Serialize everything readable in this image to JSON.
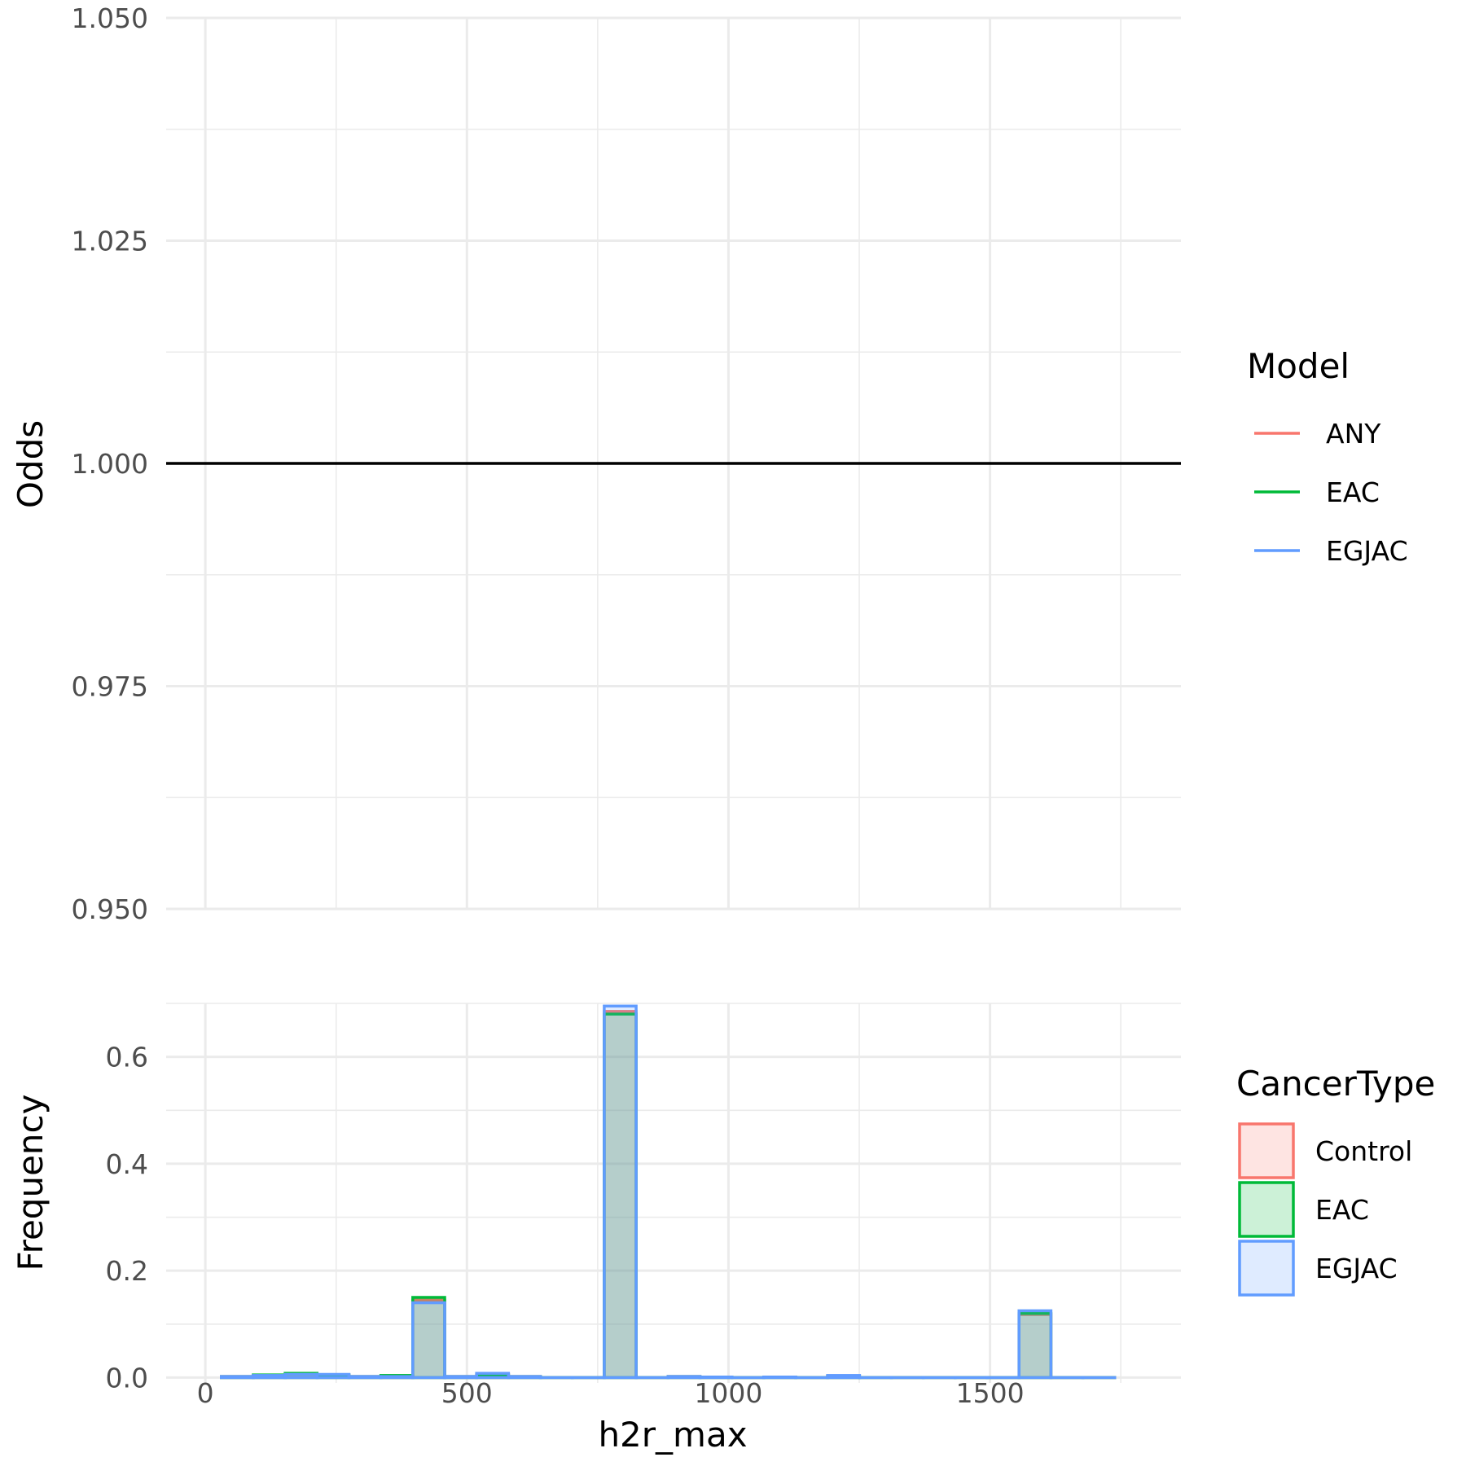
{
  "chart_data": [
    {
      "type": "line",
      "panel": "top",
      "xlabel": "",
      "ylabel": "Odds",
      "xlim": [
        -75,
        1865
      ],
      "ylim": [
        0.95,
        1.05
      ],
      "x_ticks": [
        0,
        500,
        1000,
        1500
      ],
      "y_ticks": [
        "0.950",
        "0.975",
        "1.000",
        "1.025",
        "1.050"
      ],
      "y_tick_values": [
        0.95,
        0.975,
        1.0,
        1.025,
        1.05
      ],
      "reference_line": {
        "y": 1.0,
        "color": "#000000"
      },
      "grid": true,
      "legend": {
        "title": "Model",
        "position": "right",
        "entries": [
          {
            "label": "ANY",
            "color": "#F8766D"
          },
          {
            "label": "EAC",
            "color": "#00BA38"
          },
          {
            "label": "EGJAC",
            "color": "#619CFF"
          }
        ]
      },
      "series": [
        {
          "name": "ANY",
          "color": "#F8766D",
          "x": [
            405,
            1600
          ],
          "y": [
            1.0,
            1.0
          ]
        },
        {
          "name": "EAC",
          "color": "#00BA38",
          "x": [
            405,
            1600
          ],
          "y": [
            1.0,
            1.0
          ]
        },
        {
          "name": "EGJAC",
          "color": "#619CFF",
          "x": [
            405,
            1600
          ],
          "y": [
            1.0,
            1.0
          ]
        }
      ]
    },
    {
      "type": "bar",
      "panel": "bottom",
      "xlabel": "h2r_max",
      "ylabel": "Frequency",
      "xlim": [
        -75,
        1865
      ],
      "ylim": [
        -0.01,
        0.7
      ],
      "x_ticks": [
        0,
        500,
        1000,
        1500
      ],
      "x_tick_labels": [
        "0",
        "500",
        "1000",
        "1500"
      ],
      "y_ticks": [
        "0.0",
        "0.2",
        "0.4",
        "0.6"
      ],
      "y_tick_values": [
        0.0,
        0.2,
        0.4,
        0.6
      ],
      "bin_width": 61,
      "bin_centers": [
        61,
        122,
        183,
        244,
        305,
        366,
        427,
        488,
        549,
        610,
        671,
        732,
        793,
        854,
        915,
        976,
        1037,
        1098,
        1159,
        1220,
        1281,
        1342,
        1403,
        1464,
        1525,
        1586,
        1647,
        1708
      ],
      "grid": true,
      "legend": {
        "title": "CancerType",
        "position": "right",
        "entries": [
          {
            "label": "Control",
            "color": "#F8766D"
          },
          {
            "label": "EAC",
            "color": "#00BA38"
          },
          {
            "label": "EGJAC",
            "color": "#619CFF"
          }
        ]
      },
      "series": [
        {
          "name": "Control",
          "color": "#F8766D",
          "values": [
            0.002,
            0.004,
            0.006,
            0.005,
            0.002,
            0.003,
            0.145,
            0.002,
            0.006,
            0.002,
            0.0,
            0.0,
            0.685,
            0.0,
            0.002,
            0.001,
            0.0,
            0.001,
            0.0,
            0.003,
            0.0,
            0.0,
            0.0,
            0.0,
            0.0,
            0.118,
            0.0,
            0.0
          ]
        },
        {
          "name": "EAC",
          "color": "#00BA38",
          "values": [
            0.002,
            0.005,
            0.008,
            0.005,
            0.002,
            0.004,
            0.15,
            0.002,
            0.005,
            0.002,
            0.0,
            0.0,
            0.68,
            0.0,
            0.002,
            0.001,
            0.0,
            0.001,
            0.0,
            0.003,
            0.0,
            0.0,
            0.0,
            0.0,
            0.0,
            0.12,
            0.0,
            0.0
          ]
        },
        {
          "name": "EGJAC",
          "color": "#619CFF",
          "values": [
            0.002,
            0.004,
            0.006,
            0.006,
            0.002,
            0.002,
            0.14,
            0.002,
            0.008,
            0.002,
            0.0,
            0.0,
            0.695,
            0.0,
            0.002,
            0.001,
            0.0,
            0.001,
            0.0,
            0.004,
            0.0,
            0.0,
            0.0,
            0.0,
            0.0,
            0.125,
            0.0,
            0.0
          ]
        }
      ]
    }
  ]
}
